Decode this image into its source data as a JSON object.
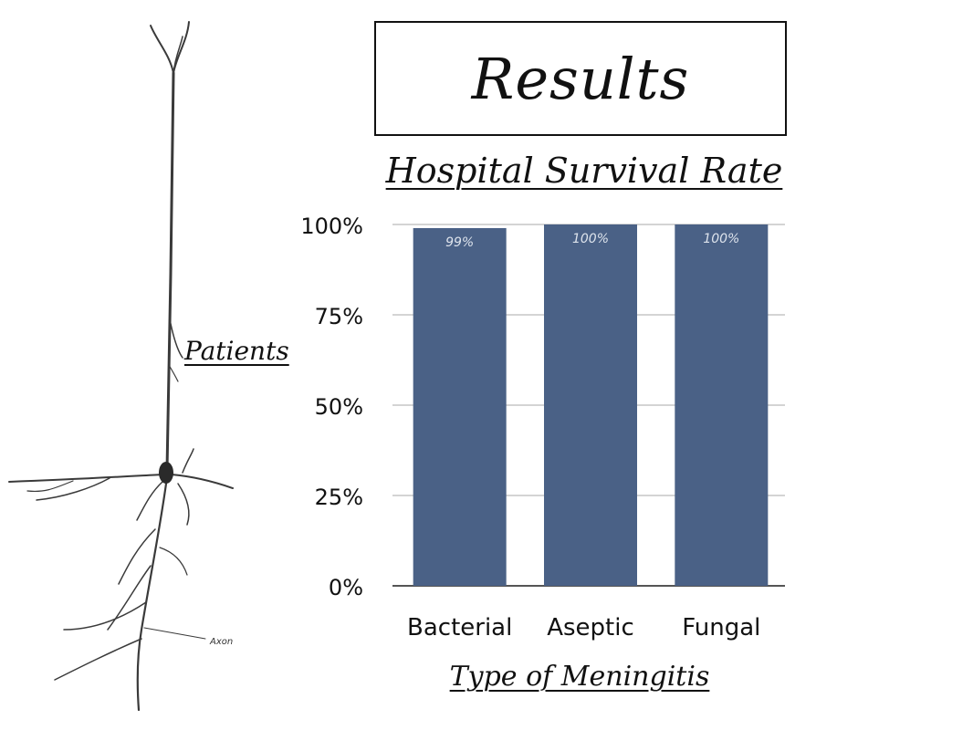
{
  "slide": {
    "title": "Results",
    "subtitle": "Hospital Survival Rate",
    "side_label": "Patients",
    "neuron_label": "Axon"
  },
  "chart_data": {
    "type": "bar",
    "title": "Hospital Survival Rate",
    "xlabel": "Type of Meningitis",
    "ylabel": "",
    "categories": [
      "Bacterial",
      "Aseptic",
      "Fungal"
    ],
    "values": [
      99,
      100,
      100
    ],
    "data_labels": [
      "99%",
      "100%",
      "100%"
    ],
    "ylim": [
      0,
      100
    ],
    "yticks": [
      0,
      25,
      50,
      75,
      100
    ],
    "ytick_labels": [
      "0%",
      "25%",
      "50%",
      "75%",
      "100%"
    ],
    "grid": true,
    "bar_color": "#4a6186",
    "legend": "none"
  }
}
